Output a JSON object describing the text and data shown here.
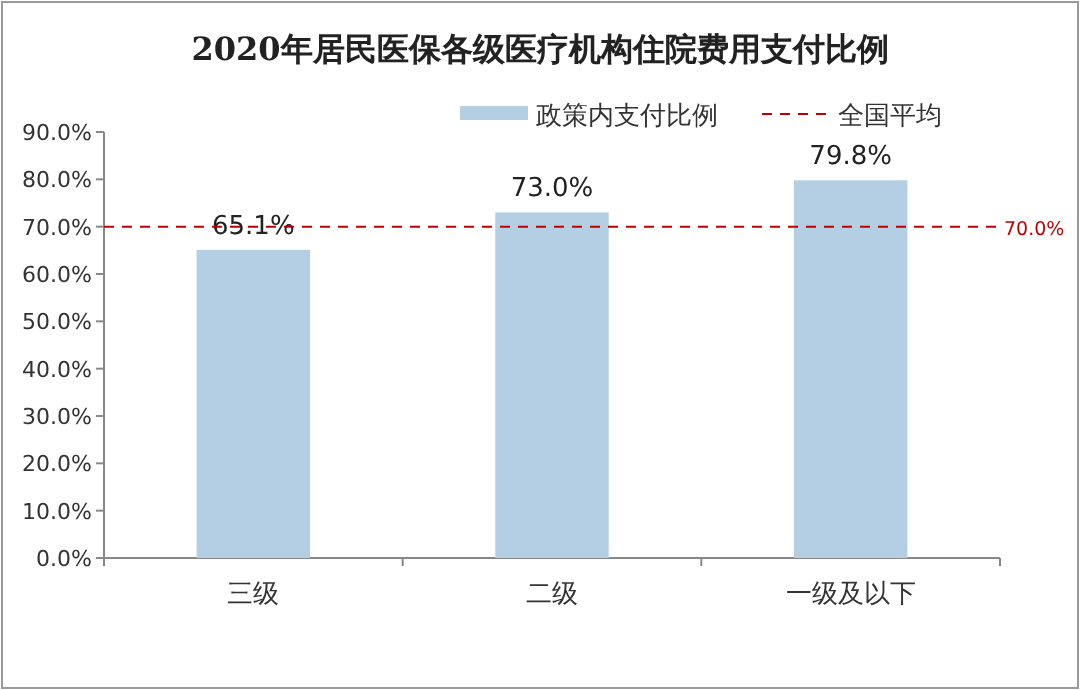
{
  "chart_data": {
    "type": "bar",
    "title": "2020年居民医保各级医疗机构住院费用支付比例",
    "categories": [
      "三级",
      "二级",
      "一级及以下"
    ],
    "series": [
      {
        "name": "政策内支付比例",
        "color": "#b4cfe3",
        "values": [
          65.1,
          73.0,
          79.8
        ],
        "value_labels": [
          "65.1%",
          "73.0%",
          "79.8%"
        ]
      }
    ],
    "ylim": [
      0,
      90
    ],
    "yticks": [
      {
        "value": 0,
        "label": "0.0%"
      },
      {
        "value": 10,
        "label": "10.0%"
      },
      {
        "value": 20,
        "label": "20.0%"
      },
      {
        "value": 30,
        "label": "30.0%"
      },
      {
        "value": 40,
        "label": "40.0%"
      },
      {
        "value": 50,
        "label": "50.0%"
      },
      {
        "value": 60,
        "label": "60.0%"
      },
      {
        "value": 70,
        "label": "70.0%"
      },
      {
        "value": 80,
        "label": "80.0%"
      },
      {
        "value": 90,
        "label": "90.0%"
      }
    ],
    "ref_lines": [
      {
        "axis": "y",
        "value": 70,
        "label": "全国平均",
        "color": "#c00000",
        "line_style": "dashed"
      }
    ],
    "annotations": [
      "70.0%"
    ],
    "legend": "top",
    "grid": false
  }
}
